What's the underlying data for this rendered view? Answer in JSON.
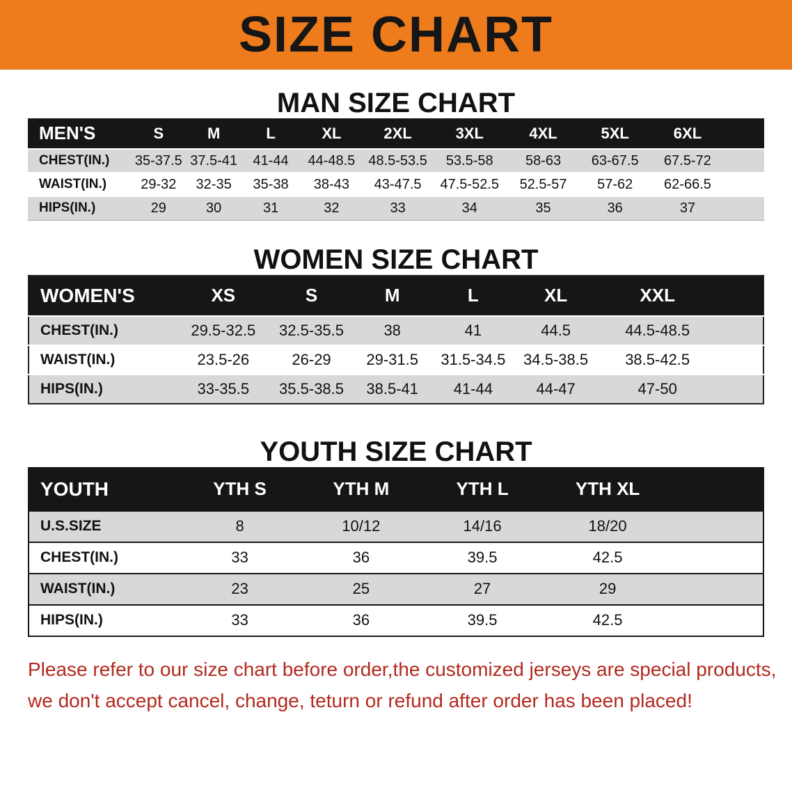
{
  "banner": {
    "title": "SIZE CHART",
    "bg_color": "#EE7B1C",
    "text_color": "#161616"
  },
  "colors": {
    "table_header_bg": "#161616",
    "table_stripe": "#d8d8d8",
    "notice_text": "#B3291E"
  },
  "sections": [
    {
      "heading": "MAN SIZE CHART",
      "table": {
        "header": [
          "MEN'S",
          "S",
          "M",
          "L",
          "XL",
          "2XL",
          "3XL",
          "4XL",
          "5XL",
          "6XL"
        ],
        "rows": [
          [
            "CHEST(IN.)",
            "35-37.5",
            "37.5-41",
            "41-44",
            "44-48.5",
            "48.5-53.5",
            "53.5-58",
            "58-63",
            "63-67.5",
            "67.5-72"
          ],
          [
            "WAIST(IN.)",
            "29-32",
            "32-35",
            "35-38",
            "38-43",
            "43-47.5",
            "47.5-52.5",
            "52.5-57",
            "57-62",
            "62-66.5"
          ],
          [
            "HIPS(IN.)",
            "29",
            "30",
            "31",
            "32",
            "33",
            "34",
            "35",
            "36",
            "37"
          ]
        ]
      }
    },
    {
      "heading": "WOMEN SIZE CHART",
      "table": {
        "header": [
          "WOMEN'S",
          "XS",
          "S",
          "M",
          "L",
          "XL",
          "XXL"
        ],
        "rows": [
          [
            "CHEST(IN.)",
            "29.5-32.5",
            "32.5-35.5",
            "38",
            "41",
            "44.5",
            "44.5-48.5"
          ],
          [
            "WAIST(IN.)",
            "23.5-26",
            "26-29",
            "29-31.5",
            "31.5-34.5",
            "34.5-38.5",
            "38.5-42.5"
          ],
          [
            "HIPS(IN.)",
            "33-35.5",
            "35.5-38.5",
            "38.5-41",
            "41-44",
            "44-47",
            "47-50"
          ]
        ]
      }
    },
    {
      "heading": "YOUTH SIZE CHART",
      "table": {
        "header": [
          "YOUTH",
          "YTH S",
          "YTH M",
          "YTH L",
          "YTH XL"
        ],
        "rows": [
          [
            "U.S.SIZE",
            "8",
            "10/12",
            "14/16",
            "18/20"
          ],
          [
            "CHEST(IN.)",
            "33",
            "36",
            "39.5",
            "42.5"
          ],
          [
            "WAIST(IN.)",
            "23",
            "25",
            "27",
            "29"
          ],
          [
            "HIPS(IN.)",
            "33",
            "36",
            "39.5",
            "42.5"
          ]
        ]
      }
    }
  ],
  "footer": {
    "line1": "Please refer to our size chart before order,the customized jerseys are special products,",
    "line2": "we don't accept cancel, change, teturn or refund after order has been placed!"
  }
}
